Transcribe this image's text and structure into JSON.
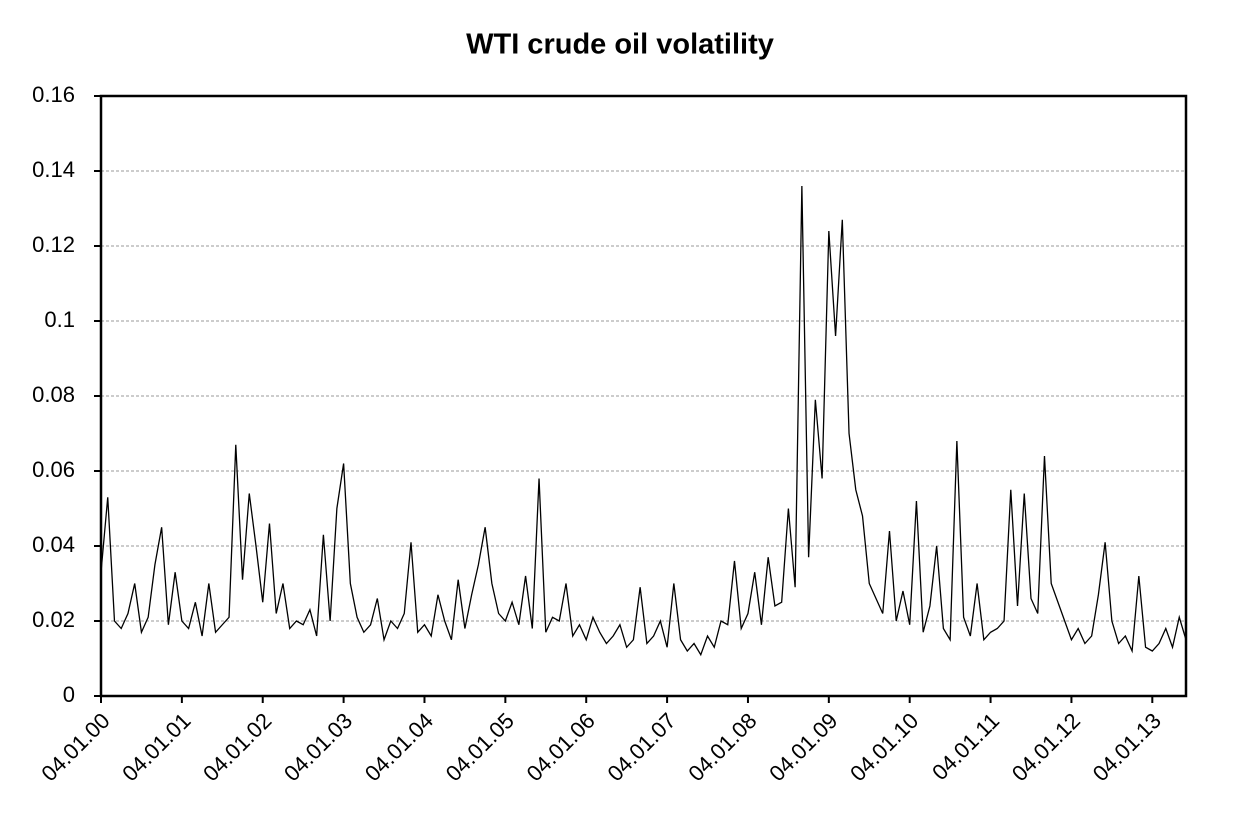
{
  "chart_data": {
    "type": "line",
    "title": "WTI crude oil volatility",
    "categories": [
      "04.01.00",
      null,
      null,
      null,
      null,
      null,
      null,
      null,
      null,
      null,
      null,
      null,
      "04.01.01",
      null,
      null,
      null,
      null,
      null,
      null,
      null,
      null,
      null,
      null,
      null,
      "04.01.02",
      null,
      null,
      null,
      null,
      null,
      null,
      null,
      null,
      null,
      null,
      null,
      "04.01.03",
      null,
      null,
      null,
      null,
      null,
      null,
      null,
      null,
      null,
      null,
      null,
      "04.01.04",
      null,
      null,
      null,
      null,
      null,
      null,
      null,
      null,
      null,
      null,
      null,
      "04.01.05",
      null,
      null,
      null,
      null,
      null,
      null,
      null,
      null,
      null,
      null,
      null,
      "04.01.06",
      null,
      null,
      null,
      null,
      null,
      null,
      null,
      null,
      null,
      null,
      null,
      "04.01.07",
      null,
      null,
      null,
      null,
      null,
      null,
      null,
      null,
      null,
      null,
      null,
      "04.01.08",
      null,
      null,
      null,
      null,
      null,
      null,
      null,
      null,
      null,
      null,
      null,
      "04.01.09",
      null,
      null,
      null,
      null,
      null,
      null,
      null,
      null,
      null,
      null,
      null,
      "04.01.10",
      null,
      null,
      null,
      null,
      null,
      null,
      null,
      null,
      null,
      null,
      null,
      "04.01.11",
      null,
      null,
      null,
      null,
      null,
      null,
      null,
      null,
      null,
      null,
      null,
      "04.01.12",
      null,
      null,
      null,
      null,
      null,
      null,
      null,
      null,
      null,
      null,
      null,
      "04.01.13",
      null,
      null,
      null,
      null,
      null
    ],
    "values": [
      0.033,
      0.053,
      0.02,
      0.018,
      0.022,
      0.03,
      0.017,
      0.021,
      0.035,
      0.045,
      0.019,
      0.033,
      0.02,
      0.018,
      0.025,
      0.016,
      0.03,
      0.017,
      0.019,
      0.021,
      0.067,
      0.031,
      0.054,
      0.04,
      0.025,
      0.046,
      0.022,
      0.03,
      0.018,
      0.02,
      0.019,
      0.023,
      0.016,
      0.043,
      0.02,
      0.05,
      0.062,
      0.03,
      0.021,
      0.017,
      0.019,
      0.026,
      0.015,
      0.02,
      0.018,
      0.022,
      0.041,
      0.017,
      0.019,
      0.016,
      0.027,
      0.02,
      0.015,
      0.031,
      0.018,
      0.027,
      0.035,
      0.045,
      0.03,
      0.022,
      0.02,
      0.025,
      0.019,
      0.032,
      0.018,
      0.058,
      0.017,
      0.021,
      0.02,
      0.03,
      0.016,
      0.019,
      0.015,
      0.021,
      0.017,
      0.014,
      0.016,
      0.019,
      0.013,
      0.015,
      0.029,
      0.014,
      0.016,
      0.02,
      0.013,
      0.03,
      0.015,
      0.012,
      0.014,
      0.011,
      0.016,
      0.013,
      0.02,
      0.019,
      0.036,
      0.018,
      0.022,
      0.033,
      0.019,
      0.037,
      0.024,
      0.025,
      0.05,
      0.029,
      0.136,
      0.037,
      0.079,
      0.058,
      0.124,
      0.096,
      0.127,
      0.07,
      0.055,
      0.048,
      0.03,
      0.026,
      0.022,
      0.044,
      0.02,
      0.028,
      0.019,
      0.052,
      0.017,
      0.024,
      0.04,
      0.018,
      0.015,
      0.068,
      0.021,
      0.016,
      0.03,
      0.015,
      0.017,
      0.018,
      0.02,
      0.055,
      0.024,
      0.054,
      0.026,
      0.022,
      0.064,
      0.03,
      0.025,
      0.02,
      0.015,
      0.018,
      0.014,
      0.016,
      0.027,
      0.041,
      0.02,
      0.014,
      0.016,
      0.012,
      0.032,
      0.013,
      0.012,
      0.014,
      0.018,
      0.013,
      0.021,
      0.015
    ],
    "color": "#000000",
    "ylim": [
      0,
      0.16
    ],
    "yticks": [
      0,
      0.02,
      0.04,
      0.06,
      0.08,
      0.1,
      0.12,
      0.14,
      0.16
    ],
    "grid": true
  }
}
